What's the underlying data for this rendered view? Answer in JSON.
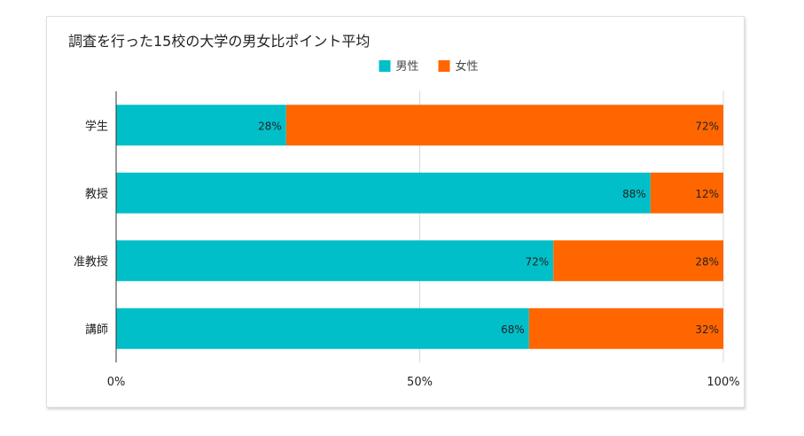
{
  "chart_data": {
    "type": "bar",
    "orientation": "horizontal",
    "stacked": true,
    "stack_mode": "percent",
    "title": "調査を行った15校の大学の男女比ポイント平均",
    "categories": [
      "学生",
      "教授",
      "准教授",
      "講師"
    ],
    "series": [
      {
        "name": "男性",
        "color": "#00BFC8",
        "values": [
          28,
          88,
          72,
          68
        ],
        "labels": [
          "28%",
          "88%",
          "72%",
          "68%"
        ]
      },
      {
        "name": "女性",
        "color": "#FF6600",
        "values": [
          72,
          12,
          28,
          32
        ],
        "labels": [
          "72%",
          "12%",
          "28%",
          "32%"
        ]
      }
    ],
    "xlim": [
      0,
      100
    ],
    "xticks": [
      0,
      50,
      100
    ],
    "xtick_labels": [
      "0%",
      "50%",
      "100%"
    ],
    "legend": {
      "placement": "top-center"
    },
    "grid": true
  }
}
